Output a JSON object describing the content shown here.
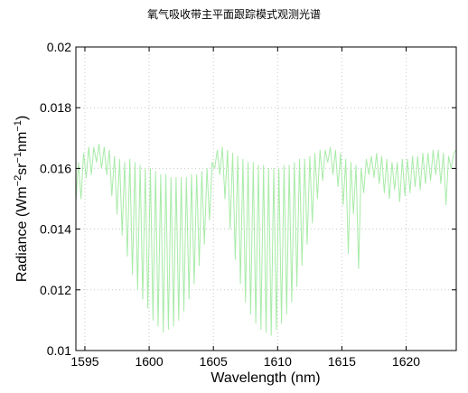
{
  "chart_data": {
    "type": "line",
    "title": "氧气吸收带主平面跟踪模式观测光谱",
    "xlabel": "Wavelength (nm)",
    "ylabel_base": "Radiance (Wm",
    "ylabel_sup1": "−2",
    "ylabel_mid1": "sr",
    "ylabel_sup2": "−1",
    "ylabel_mid2": "nm",
    "ylabel_sup3": "−1",
    "ylabel_end": ")",
    "xlim": [
      1594.3,
      1623.9
    ],
    "ylim": [
      0.01,
      0.02
    ],
    "xticks": [
      1595,
      1600,
      1605,
      1610,
      1615,
      1620
    ],
    "yticks": [
      0.01,
      0.012,
      0.014,
      0.016,
      0.018,
      0.02
    ],
    "ytick_labels": [
      "0.01",
      "0.012",
      "0.014",
      "0.016",
      "0.018",
      "0.02"
    ],
    "grid": true,
    "line_color": "#a8eba8",
    "series": [
      {
        "x": [
          1594.3,
          1594.5,
          1594.7,
          1594.9,
          1595.1,
          1595.3,
          1595.5,
          1595.7,
          1595.9,
          1596.1,
          1596.3,
          1596.5,
          1596.7,
          1596.9,
          1597.1,
          1597.3,
          1597.5,
          1597.7,
          1597.9,
          1598.1,
          1598.3,
          1598.5,
          1598.7,
          1598.9,
          1599.1,
          1599.3,
          1599.5,
          1599.7,
          1599.9,
          1600.1,
          1600.3,
          1600.5,
          1600.7,
          1600.9,
          1601.1,
          1601.3,
          1601.5,
          1601.7,
          1601.9,
          1602.1,
          1602.3,
          1602.5,
          1602.7,
          1602.9,
          1603.1,
          1603.3,
          1603.5,
          1603.7,
          1603.9,
          1604.1,
          1604.3,
          1604.5,
          1604.7,
          1604.9,
          1605.1,
          1605.3,
          1605.5,
          1605.7,
          1605.9,
          1606.1,
          1606.3,
          1606.5,
          1606.7,
          1606.9,
          1607.1,
          1607.3,
          1607.5,
          1607.7,
          1607.9,
          1608.1,
          1608.3,
          1608.5,
          1608.7,
          1608.9,
          1609.1,
          1609.3,
          1609.5,
          1609.7,
          1609.9,
          1610.1,
          1610.3,
          1610.5,
          1610.7,
          1610.9,
          1611.1,
          1611.3,
          1611.5,
          1611.7,
          1611.9,
          1612.1,
          1612.3,
          1612.5,
          1612.7,
          1612.9,
          1613.1,
          1613.3,
          1613.5,
          1613.7,
          1613.9,
          1614.1,
          1614.3,
          1614.5,
          1614.7,
          1614.9,
          1615.1,
          1615.3,
          1615.5,
          1615.7,
          1615.9,
          1616.1,
          1616.3,
          1616.5,
          1616.7,
          1616.9,
          1617.1,
          1617.3,
          1617.5,
          1617.7,
          1617.9,
          1618.1,
          1618.3,
          1618.5,
          1618.7,
          1618.9,
          1619.1,
          1619.3,
          1619.5,
          1619.7,
          1619.9,
          1620.1,
          1620.3,
          1620.5,
          1620.7,
          1620.9,
          1621.1,
          1621.3,
          1621.5,
          1621.7,
          1621.9,
          1622.1,
          1622.3,
          1622.5,
          1622.7,
          1622.9,
          1623.1,
          1623.3,
          1623.5,
          1623.7,
          1623.9
        ],
        "y": [
          0.0149,
          0.0162,
          0.015,
          0.0165,
          0.0157,
          0.0167,
          0.0158,
          0.0167,
          0.0162,
          0.0168,
          0.016,
          0.0167,
          0.0158,
          0.0166,
          0.0151,
          0.0164,
          0.0145,
          0.0163,
          0.0138,
          0.0162,
          0.0131,
          0.0163,
          0.0125,
          0.0162,
          0.012,
          0.0161,
          0.0117,
          0.016,
          0.0114,
          0.016,
          0.011,
          0.0159,
          0.0108,
          0.0158,
          0.0106,
          0.0158,
          0.0107,
          0.0157,
          0.0108,
          0.0157,
          0.011,
          0.0157,
          0.0113,
          0.0157,
          0.0117,
          0.0158,
          0.0122,
          0.0158,
          0.0128,
          0.0159,
          0.0135,
          0.016,
          0.0143,
          0.0162,
          0.016,
          0.0166,
          0.0158,
          0.0167,
          0.015,
          0.0166,
          0.014,
          0.0165,
          0.013,
          0.0164,
          0.0122,
          0.0163,
          0.0116,
          0.0162,
          0.0112,
          0.0162,
          0.0109,
          0.0161,
          0.0107,
          0.0161,
          0.0106,
          0.016,
          0.0105,
          0.016,
          0.0107,
          0.016,
          0.0109,
          0.0161,
          0.0112,
          0.0161,
          0.0116,
          0.0162,
          0.0121,
          0.0163,
          0.0128,
          0.0163,
          0.0135,
          0.0164,
          0.0142,
          0.0165,
          0.015,
          0.0166,
          0.0156,
          0.0166,
          0.0162,
          0.0167,
          0.0158,
          0.0166,
          0.0154,
          0.0165,
          0.0148,
          0.0163,
          0.0132,
          0.0162,
          0.0145,
          0.0161,
          0.0127,
          0.016,
          0.0152,
          0.0163,
          0.0158,
          0.0164,
          0.0157,
          0.0165,
          0.0155,
          0.0164,
          0.0152,
          0.0163,
          0.015,
          0.0162,
          0.0153,
          0.0162,
          0.0149,
          0.0163,
          0.0151,
          0.0163,
          0.0152,
          0.0164,
          0.0154,
          0.0164,
          0.0153,
          0.0165,
          0.0155,
          0.0165,
          0.0156,
          0.0166,
          0.0158,
          0.0166,
          0.0155,
          0.0165,
          0.0148,
          0.0164,
          0.016,
          0.0165,
          0.0166
        ]
      }
    ]
  }
}
